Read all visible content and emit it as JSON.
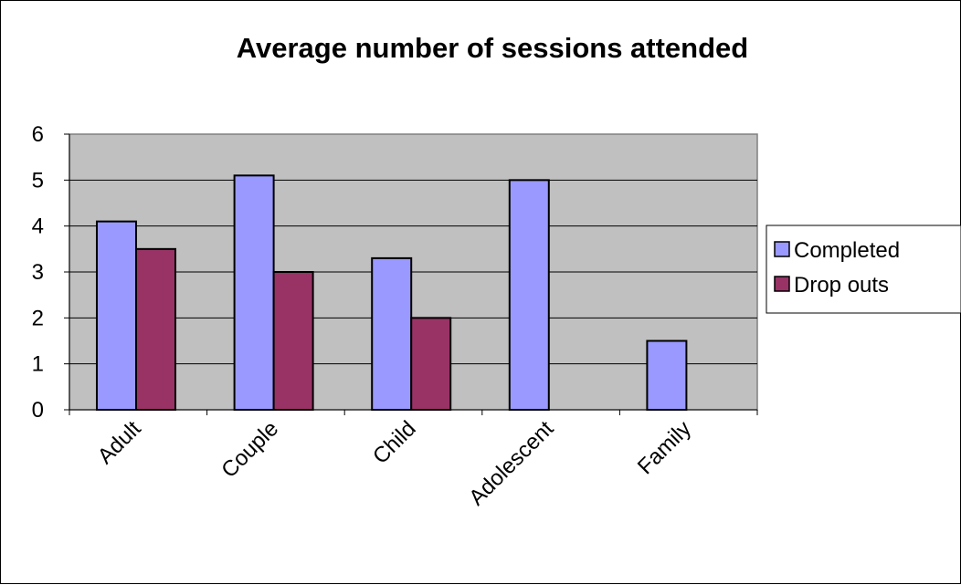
{
  "chart_data": {
    "type": "bar",
    "title": "Average number of sessions attended",
    "xlabel": "",
    "ylabel": "",
    "categories": [
      "Adult",
      "Couple",
      "Child",
      "Adolescent",
      "Family"
    ],
    "series": [
      {
        "name": "Completed",
        "values": [
          4.1,
          5.1,
          3.3,
          5.0,
          1.5
        ],
        "color": "#9999ff"
      },
      {
        "name": "Drop outs",
        "values": [
          3.5,
          3.0,
          2.0,
          null,
          null
        ],
        "color": "#993366"
      }
    ],
    "ylim": [
      0,
      6
    ],
    "yticks": [
      "0",
      "1",
      "2",
      "3",
      "4",
      "5",
      "6"
    ],
    "grid": true,
    "legend_position": "right",
    "plot_background": "#c0c0c0"
  }
}
